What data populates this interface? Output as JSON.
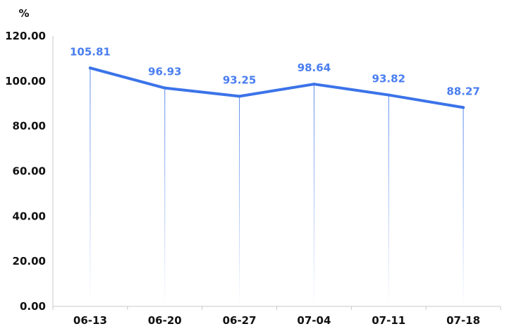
{
  "chart_data": {
    "type": "line",
    "title": "",
    "xlabel": "",
    "ylabel": "%",
    "categories": [
      "06-13",
      "06-20",
      "06-27",
      "07-04",
      "07-11",
      "07-18"
    ],
    "values": [
      105.81,
      96.93,
      93.25,
      98.64,
      93.82,
      88.27
    ],
    "data_labels": [
      "105.81",
      "96.93",
      "93.25",
      "98.64",
      "93.82",
      "88.27"
    ],
    "y_ticks": [
      "0.00",
      "20.00",
      "40.00",
      "60.00",
      "80.00",
      "100.00",
      "120.00"
    ],
    "ylim": [
      0,
      120
    ],
    "grid": false,
    "legend": "none",
    "colors": {
      "line": "#3b73e9",
      "data_label": "#4a7ef0",
      "drop_line": "#3b73e9",
      "axis": "#c8c8c8",
      "tick_text": "#111111"
    }
  }
}
